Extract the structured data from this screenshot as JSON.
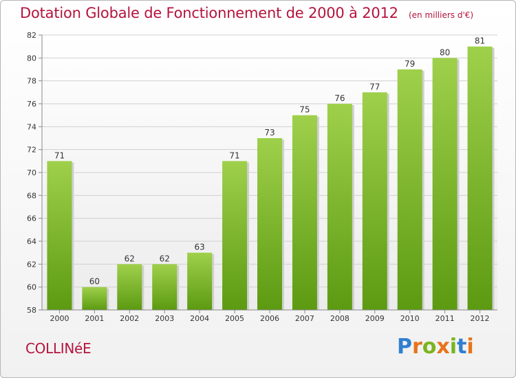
{
  "header": {
    "title": "Dotation Globale de Fonctionnement de 2000 à 2012",
    "unit": "(en milliers d'€)"
  },
  "footer": {
    "commune": "COLLINéE",
    "brand_letters": [
      "P",
      "r",
      "o",
      "x",
      "i",
      "t",
      "i"
    ],
    "brand_colors": [
      "#2f7fd0",
      "#e8731a",
      "#7ab51d",
      "#e8731a",
      "#7ab51d",
      "#2f7fd0",
      "#e8731a"
    ]
  },
  "colors": {
    "title": "#b5133c",
    "bar_top": "#9fd04b",
    "bar_bottom": "#5c9a12",
    "grid": "#d0d0d0",
    "axis": "#888888"
  },
  "chart_data": {
    "type": "bar",
    "title": "Dotation Globale de Fonctionnement de 2000 à 2012",
    "subtitle": "(en milliers d'€)",
    "xlabel": "",
    "ylabel": "",
    "categories": [
      "2000",
      "2001",
      "2002",
      "2003",
      "2004",
      "2005",
      "2006",
      "2007",
      "2008",
      "2009",
      "2010",
      "2011",
      "2012"
    ],
    "values": [
      71,
      60,
      62,
      62,
      63,
      71,
      73,
      75,
      76,
      77,
      79,
      80,
      81
    ],
    "ylim": [
      58,
      82
    ],
    "yticks": [
      58,
      60,
      62,
      64,
      66,
      68,
      70,
      72,
      74,
      76,
      78,
      80,
      82
    ],
    "grid": true,
    "legend": "none"
  }
}
